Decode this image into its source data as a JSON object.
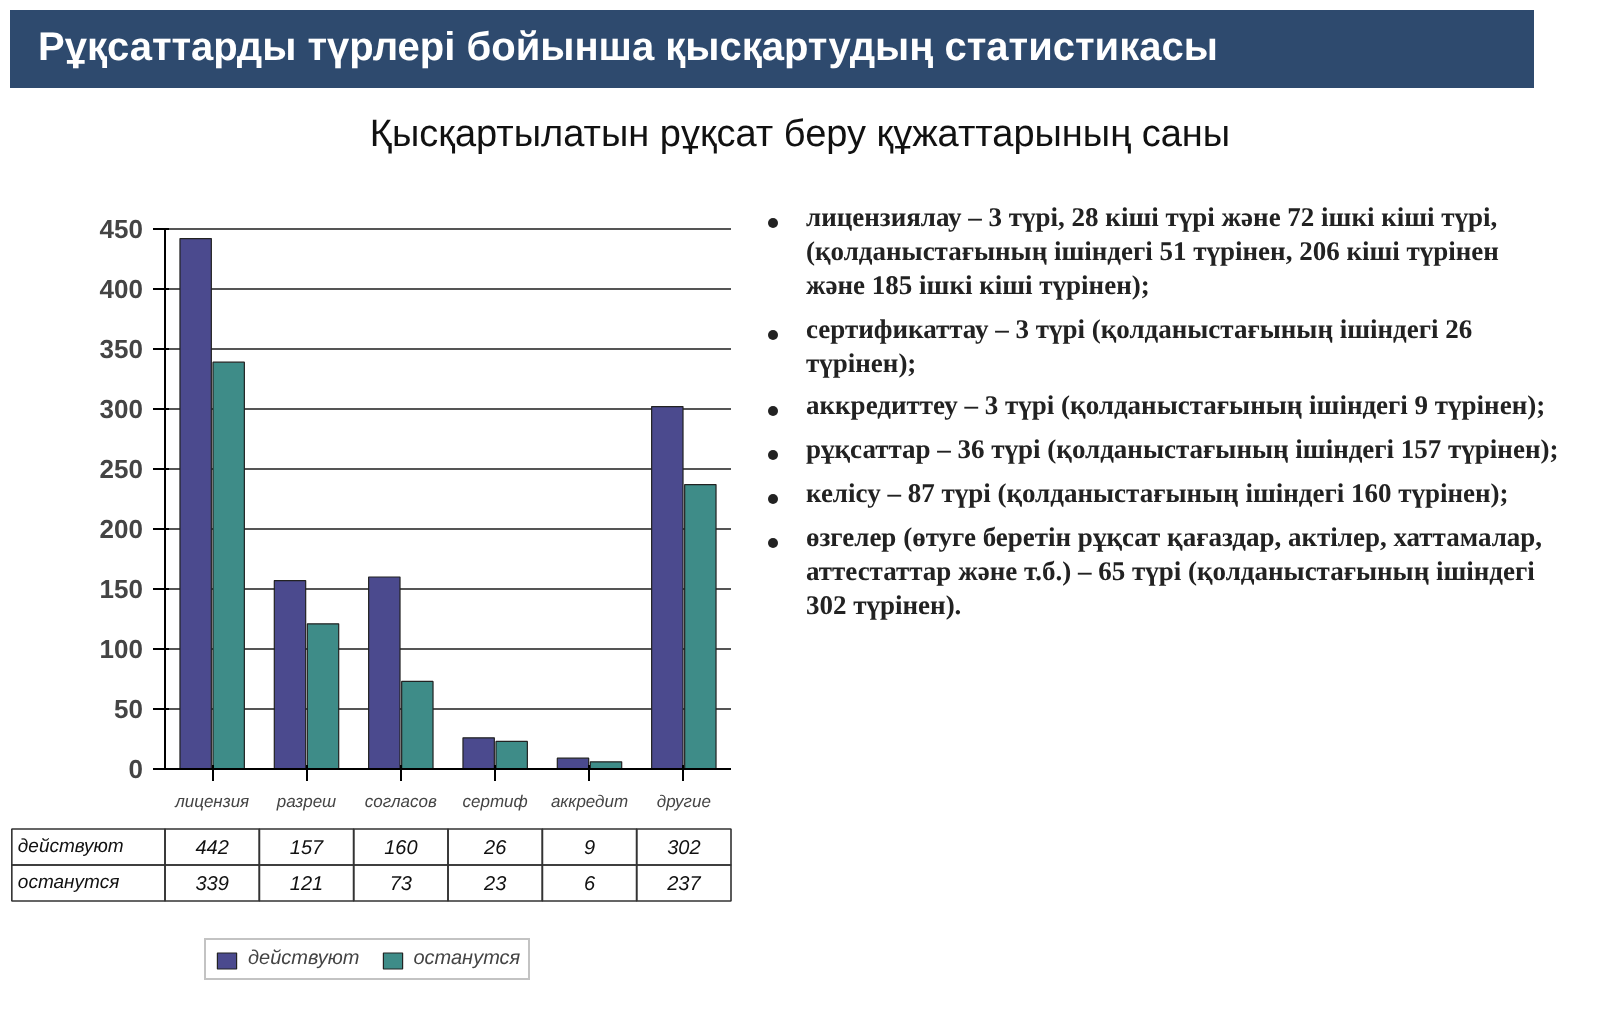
{
  "chart_data": {
    "type": "bar",
    "title": "Рұқсаттарды түрлері бойынша қысқартудың статистикасы",
    "subtitle": "Қысқартылатын рұқсат беру құжаттарының саны",
    "categories": [
      "лицензия",
      "разреш",
      "согласов",
      "сертиф",
      "аккредит",
      "другие"
    ],
    "series": [
      {
        "name": "действуют",
        "color": "#4b4a8e",
        "values": [
          442,
          157,
          160,
          26,
          9,
          302
        ]
      },
      {
        "name": "останутся",
        "color": "#3e8c88",
        "values": [
          339,
          121,
          73,
          23,
          6,
          237
        ]
      }
    ],
    "ylim": [
      0,
      450
    ],
    "yticks": [
      0,
      50,
      100,
      150,
      200,
      250,
      300,
      350,
      400,
      450
    ],
    "grid": "y",
    "legend": "bottom",
    "data_labels": true,
    "annotations": [
      "лицензиялау – 3 түрі, 28 кіші түрі және 72 ішкі кіші түрі, (қолданыстағының ішіндегі 51 түрінен, 206 кіші түрінен және 185 ішкі кіші түрінен);",
      "сертификаттау – 3 түрі (қолданыстағының ішіндегі 26 түрінен);",
      "аккредиттеу – 3 түрі (қолданыстағының ішіндегі 9 түрінен);",
      "рұқсаттар – 36 түрі (қолданыстағының ішіндегі 157 түрінен);",
      "келісу – 87 түрі (қолданыстағының ішіндегі 160 түрінен);",
      "өзгелер (өтуге беретін рұқсат қағаздар, актілер, хаттамалар, аттестаттар және т.б.) – 65 түрі (қолданыстағының ішіндегі 302 түрінен)."
    ]
  }
}
